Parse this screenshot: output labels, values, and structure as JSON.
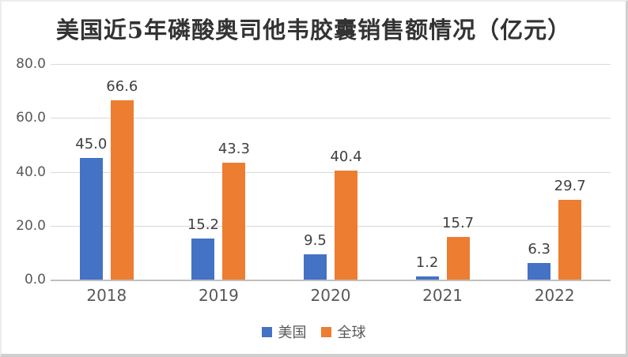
{
  "chart_data": {
    "type": "bar",
    "title": "美国近5年磷酸奥司他韦胶囊销售额情况（亿元）",
    "categories": [
      "2018",
      "2019",
      "2020",
      "2021",
      "2022"
    ],
    "series": [
      {
        "name": "美国",
        "color": "#4472C4",
        "values": [
          45.0,
          15.2,
          9.5,
          1.2,
          6.3
        ]
      },
      {
        "name": "全球",
        "color": "#ED7D31",
        "values": [
          66.6,
          43.3,
          40.4,
          15.7,
          29.7
        ]
      }
    ],
    "data_labels": [
      [
        "45.0",
        "15.2",
        "9.5",
        "1.2",
        "6.3"
      ],
      [
        "66.6",
        "43.3",
        "40.4",
        "15.7",
        "29.7"
      ]
    ],
    "xlabel": "",
    "ylabel": "",
    "ylim": [
      0,
      80
    ],
    "y_ticks": [
      {
        "value": 80,
        "label": "80.0"
      },
      {
        "value": 60,
        "label": "60.0"
      },
      {
        "value": 40,
        "label": "40.0"
      },
      {
        "value": 20,
        "label": "20.0"
      },
      {
        "value": 0,
        "label": "0.0"
      }
    ],
    "grid": true,
    "legend_position": "bottom",
    "legend": [
      {
        "label": "美国",
        "color": "#4472C4"
      },
      {
        "label": "全球",
        "color": "#ED7D31"
      }
    ]
  },
  "colors": {
    "series_us": "#4472C4",
    "series_global": "#ED7D31",
    "gridline": "#D9D9D9",
    "axis_line": "#BFBFBF",
    "axis_text": "#595959",
    "data_label_text": "#404040",
    "title_text": "#333333"
  }
}
